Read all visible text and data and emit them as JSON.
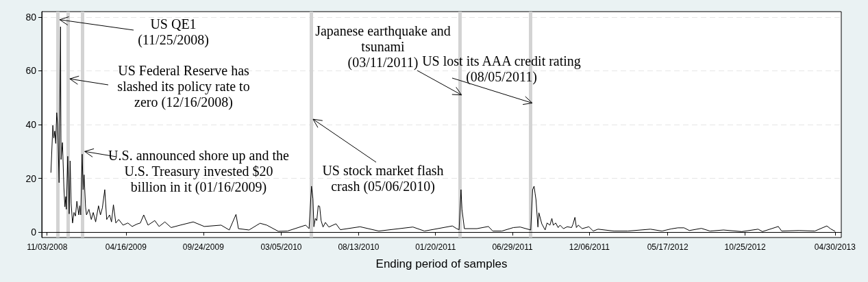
{
  "chart_data": {
    "type": "line",
    "xlabel": "Ending period of samples",
    "xlim": [
      "2008-10-23",
      "2013-05-13"
    ],
    "xticks": [
      {
        "value": "2008-11-03",
        "label": "11/03/2008"
      },
      {
        "value": "2009-04-16",
        "label": "04/16/2009"
      },
      {
        "value": "2009-09-24",
        "label": "09/24/2009"
      },
      {
        "value": "2010-03-05",
        "label": "03/05/2010"
      },
      {
        "value": "2010-08-13",
        "label": "08/13/2010"
      },
      {
        "value": "2011-01-20",
        "label": "01/20/2011"
      },
      {
        "value": "2011-06-29",
        "label": "06/29/2011"
      },
      {
        "value": "2011-12-06",
        "label": "12/06/2011"
      },
      {
        "value": "2012-05-17",
        "label": "05/17/2012"
      },
      {
        "value": "2012-10-25",
        "label": "10/25/2012"
      },
      {
        "value": "2013-04-30",
        "label": "04/30/2013"
      }
    ],
    "ylim": [
      -2,
      82
    ],
    "yticks": [
      0,
      20,
      40,
      60,
      80
    ],
    "grid": "y",
    "marker": "none",
    "line_style": "solid",
    "series": [
      {
        "color": "#000000",
        "x": [
          "2008-11-11",
          "2008-11-15",
          "2008-11-17",
          "2008-11-19",
          "2008-11-21",
          "2008-11-23",
          "2008-11-25",
          "2008-11-28",
          "2008-12-01",
          "2008-12-02",
          "2008-12-05",
          "2008-12-08",
          "2008-12-10",
          "2008-12-12",
          "2008-12-13",
          "2008-12-16",
          "2008-12-19",
          "2008-12-21",
          "2008-12-23",
          "2008-12-26",
          "2008-12-29",
          "2009-01-01",
          "2009-01-04",
          "2009-01-08",
          "2009-01-10",
          "2009-01-12",
          "2009-01-15",
          "2009-01-17",
          "2009-01-19",
          "2009-01-22",
          "2009-01-24",
          "2009-01-29",
          "2009-02-03",
          "2009-02-07",
          "2009-02-12",
          "2009-02-18",
          "2009-02-22",
          "2009-02-26",
          "2009-03-03",
          "2009-03-07",
          "2009-03-13",
          "2009-03-17",
          "2009-03-21",
          "2009-03-26",
          "2009-04-01",
          "2009-04-10",
          "2009-04-20",
          "2009-04-29",
          "2009-05-09",
          "2009-05-16",
          "2009-05-23",
          "2009-06-01",
          "2009-06-15",
          "2009-06-24",
          "2009-07-06",
          "2009-07-19",
          "2009-08-07",
          "2009-09-03",
          "2009-09-26",
          "2009-10-31",
          "2009-11-17",
          "2009-12-01",
          "2009-12-06",
          "2009-12-28",
          "2010-01-20",
          "2010-02-03",
          "2010-02-27",
          "2010-03-18",
          "2010-04-25",
          "2010-05-02",
          "2010-05-07",
          "2010-05-10",
          "2010-05-12",
          "2010-05-15",
          "2010-05-18",
          "2010-05-21",
          "2010-05-24",
          "2010-05-27",
          "2010-05-31",
          "2010-06-05",
          "2010-06-12",
          "2010-06-27",
          "2010-07-06",
          "2010-08-16",
          "2010-09-24",
          "2010-12-04",
          "2010-12-28",
          "2011-02-24",
          "2011-03-05",
          "2011-03-10",
          "2011-03-14",
          "2011-03-16",
          "2011-03-21",
          "2011-04-16",
          "2011-05-10",
          "2011-05-19",
          "2011-06-07",
          "2011-07-01",
          "2011-07-15",
          "2011-08-06",
          "2011-08-10",
          "2011-08-13",
          "2011-08-15",
          "2011-08-17",
          "2011-08-21",
          "2011-08-23",
          "2011-08-29",
          "2011-09-05",
          "2011-09-09",
          "2011-09-15",
          "2011-09-19",
          "2011-09-22",
          "2011-09-27",
          "2011-10-02",
          "2011-10-06",
          "2011-10-13",
          "2011-10-21",
          "2011-10-30",
          "2011-11-02",
          "2011-11-06",
          "2011-11-09",
          "2011-11-13",
          "2011-11-21",
          "2011-12-05",
          "2011-12-14",
          "2011-12-24",
          "2012-01-26",
          "2012-02-24",
          "2012-04-11",
          "2012-05-05",
          "2012-05-24",
          "2012-06-07",
          "2012-06-20",
          "2012-07-01",
          "2012-07-26",
          "2012-08-13",
          "2012-09-10",
          "2012-10-18",
          "2012-11-21",
          "2012-11-30",
          "2013-01-02",
          "2013-01-09",
          "2013-02-14",
          "2013-03-19",
          "2013-04-13",
          "2013-04-21",
          "2013-04-30"
        ],
        "values": [
          22.2,
          39.7,
          35,
          37.6,
          33,
          44.4,
          40,
          18.4,
          76.4,
          27,
          33.3,
          16.6,
          9.4,
          13.2,
          8.5,
          28.2,
          6.8,
          26.5,
          10.7,
          3.4,
          7.3,
          6,
          11.5,
          6.4,
          9.8,
          6.4,
          29,
          15.8,
          21.3,
          9.4,
          6.4,
          8.5,
          4.7,
          7.3,
          3.8,
          9.8,
          6.4,
          9,
          15.8,
          4.7,
          6.4,
          3.8,
          10.2,
          3.4,
          4.7,
          2.6,
          3.4,
          2.1,
          3,
          3.4,
          6.4,
          2.6,
          4.3,
          2.1,
          3.8,
          1.7,
          2.6,
          3.8,
          2.1,
          2.6,
          0.8,
          6.6,
          1.3,
          0.8,
          3.3,
          2.6,
          0.3,
          0.4,
          2.6,
          1.3,
          17.1,
          12.4,
          2,
          5.1,
          4.3,
          9.8,
          9.6,
          4.3,
          1.9,
          3.6,
          1.9,
          3.1,
          0.9,
          2,
          0.4,
          1.9,
          0.4,
          2.3,
          1.3,
          0.9,
          15.8,
          8.5,
          1.3,
          1.3,
          2.1,
          0.4,
          0.4,
          1.7,
          1.9,
          0.8,
          15.8,
          17.1,
          14.5,
          12,
          1.9,
          7.2,
          3.1,
          0.8,
          3.4,
          2.6,
          5.1,
          2.6,
          3.4,
          1.7,
          2.6,
          1.3,
          2,
          1.7,
          3,
          5.5,
          1.7,
          2.6,
          1.3,
          2,
          0.4,
          1.1,
          0.4,
          0.4,
          1.1,
          0.4,
          1.2,
          1.6,
          1.6,
          0.6,
          1.4,
          0.4,
          0.8,
          0.2,
          1.1,
          0.2,
          2.1,
          0.4,
          0.6,
          0.4,
          2.3,
          1.2,
          0.3
        ]
      }
    ],
    "ref_lines": [
      {
        "axis": "x",
        "value": "2008-11-25",
        "color": "#d3d3d3"
      },
      {
        "axis": "x",
        "value": "2008-12-16",
        "color": "#d3d3d3"
      },
      {
        "axis": "x",
        "value": "2009-01-16",
        "color": "#d3d3d3"
      },
      {
        "axis": "x",
        "value": "2010-05-06",
        "color": "#d3d3d3"
      },
      {
        "axis": "x",
        "value": "2011-03-11",
        "color": "#d3d3d3"
      },
      {
        "axis": "x",
        "value": "2011-08-05",
        "color": "#d3d3d3"
      }
    ],
    "annotations": [
      {
        "text": "US QE1\n(11/25/2008)",
        "x": "2008-11-25",
        "y": 79
      },
      {
        "text": "US Federal Reserve has\nslashed its policy rate to\nzero (12/16/2008)",
        "x": "2008-12-16",
        "y": 57
      },
      {
        "text": "U.S. announced shore up and the\nU.S. Treasury invested $20\nbillion in it (01/16/2009)",
        "x": "2009-01-16",
        "y": 30
      },
      {
        "text": "US stock market flash\ncrash (05/06/2010)",
        "x": "2010-05-06",
        "y": 42
      },
      {
        "text": "Japanese earthquake and\ntsunami\n(03/11/2011)",
        "x": "2011-03-11",
        "y": 51
      },
      {
        "text": "US lost its AAA credit rating\n(08/05/2011)",
        "x": "2011-08-05",
        "y": 48
      }
    ]
  }
}
